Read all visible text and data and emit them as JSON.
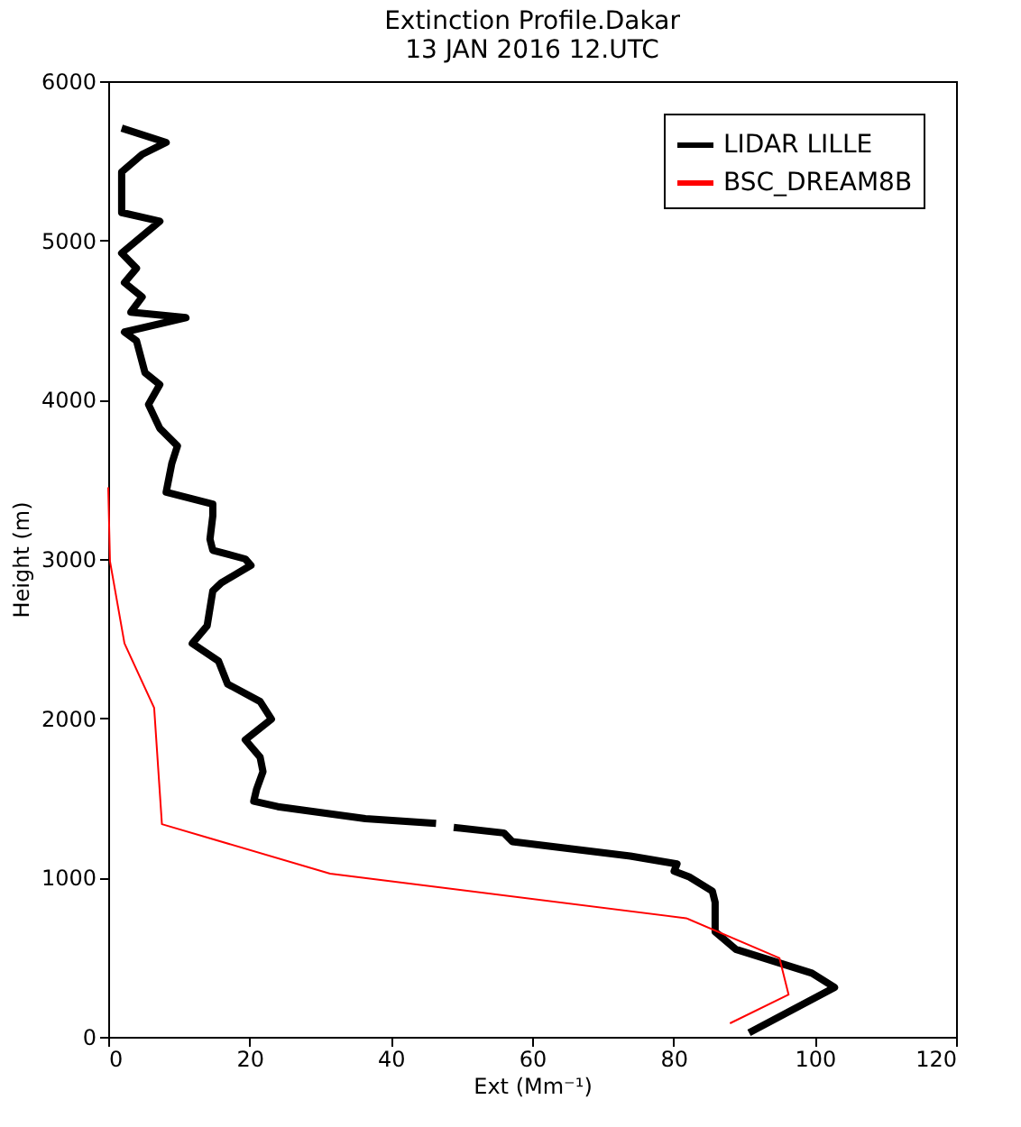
{
  "chart_data": {
    "type": "line",
    "title": "Extinction Profile.Dakar",
    "subtitle": "13 JAN 2016 12.UTC",
    "xlabel": "Ext (Mm⁻¹)",
    "ylabel": "Height (m)",
    "xlim": [
      0,
      120
    ],
    "xticks": [
      0,
      20,
      40,
      60,
      80,
      100,
      120
    ],
    "ylim": [
      0,
      6000
    ],
    "yticks": [
      0,
      1000,
      2000,
      3000,
      4000,
      5000,
      6000
    ],
    "grid": false,
    "legend": "top right",
    "marker": "none",
    "line_style": "solid",
    "series": [
      {
        "name": "LIDAR LILLE",
        "color": "#000000",
        "x": [
          90.7,
          102.8,
          99.6,
          88.8,
          85.9,
          85.9,
          85.5,
          82.2,
          80.1,
          80.5,
          73.9,
          57.2,
          56,
          48.9,
          null,
          46.4,
          36.4,
          24,
          20.6,
          21,
          21.9,
          21.5,
          19.4,
          23.1,
          21.5,
          16.9,
          15.6,
          11.9,
          14,
          14.8,
          16,
          20.2,
          19.4,
          14.8,
          14.4,
          14.8,
          14.8,
          8.2,
          9,
          9.8,
          7.3,
          5.7,
          7.3,
          5.2,
          4,
          2.3,
          11,
          3.2,
          4.8,
          2.3,
          4,
          1.9,
          7.3,
          1.9,
          1.9,
          4.8,
          8.2,
          1.9
        ],
        "values": [
          25,
          310,
          400,
          550,
          660,
          845,
          915,
          1005,
          1040,
          1085,
          1135,
          1225,
          1280,
          1315,
          null,
          1340,
          1370,
          1445,
          1480,
          1555,
          1665,
          1755,
          1865,
          1995,
          2105,
          2215,
          2360,
          2470,
          2580,
          2800,
          2850,
          2960,
          3000,
          3055,
          3125,
          3270,
          3345,
          3420,
          3600,
          3710,
          3820,
          3970,
          4095,
          4170,
          4370,
          4425,
          4515,
          4550,
          4645,
          4735,
          4825,
          4920,
          5120,
          5175,
          5430,
          5540,
          5615,
          5705
        ]
      },
      {
        "name": "BSC_DREAM8B",
        "color": "#ff0000",
        "x": [
          88,
          96.3,
          95,
          81.8,
          31.4,
          7.6,
          6.5,
          2.3,
          0.25,
          0
        ],
        "values": [
          85,
          265,
          495,
          745,
          1025,
          1335,
          2065,
          2470,
          2985,
          3450
        ]
      }
    ]
  }
}
